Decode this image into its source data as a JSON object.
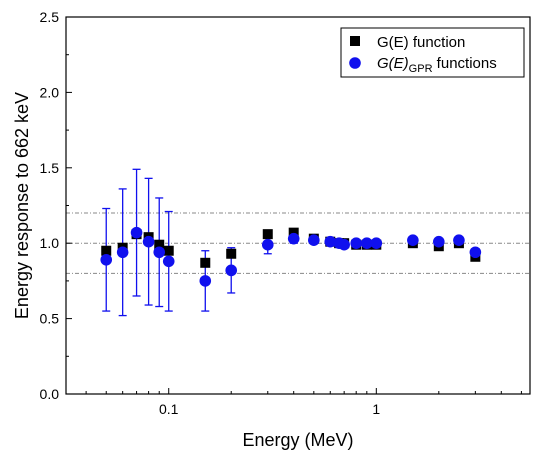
{
  "chart_data": {
    "type": "scatter",
    "xlabel": "Energy (MeV)",
    "ylabel": "Energy response to 662 keV",
    "xscale": "log",
    "xlim": [
      0.032,
      5.5
    ],
    "ylim": [
      0.0,
      2.5
    ],
    "x_ticks": [
      0.1,
      1
    ],
    "x_tick_labels": [
      "0.1",
      "1"
    ],
    "y_ticks": [
      0.0,
      0.5,
      1.0,
      1.5,
      2.0,
      2.5
    ],
    "y_tick_labels": [
      "0.0",
      "0.5",
      "1.0",
      "1.5",
      "2.0",
      "2.5"
    ],
    "reference_lines": [
      0.8,
      1.0,
      1.2
    ],
    "legend_position": "top-right",
    "series": [
      {
        "name": "G(E) function",
        "marker": "square",
        "color": "#000000",
        "points": [
          {
            "x": 0.05,
            "y": 0.95
          },
          {
            "x": 0.06,
            "y": 0.97
          },
          {
            "x": 0.07,
            "y": 1.06
          },
          {
            "x": 0.08,
            "y": 1.04
          },
          {
            "x": 0.09,
            "y": 0.99
          },
          {
            "x": 0.1,
            "y": 0.95
          },
          {
            "x": 0.15,
            "y": 0.87
          },
          {
            "x": 0.2,
            "y": 0.93
          },
          {
            "x": 0.3,
            "y": 1.06
          },
          {
            "x": 0.4,
            "y": 1.07
          },
          {
            "x": 0.5,
            "y": 1.03
          },
          {
            "x": 0.6,
            "y": 1.01
          },
          {
            "x": 0.662,
            "y": 1.0
          },
          {
            "x": 0.7,
            "y": 1.0
          },
          {
            "x": 0.8,
            "y": 0.99
          },
          {
            "x": 0.9,
            "y": 0.99
          },
          {
            "x": 1.0,
            "y": 0.99
          },
          {
            "x": 1.5,
            "y": 1.0
          },
          {
            "x": 2.0,
            "y": 0.98
          },
          {
            "x": 2.5,
            "y": 1.0
          },
          {
            "x": 3.0,
            "y": 0.91
          }
        ]
      },
      {
        "name": "G(E)GPR functions",
        "name_parts": {
          "main": "G(E)",
          "subscript": "GPR",
          "suffix": " functions"
        },
        "marker": "circle",
        "color": "#1010ee",
        "points": [
          {
            "x": 0.05,
            "y": 0.89,
            "err": 0.34
          },
          {
            "x": 0.06,
            "y": 0.94,
            "err": 0.42
          },
          {
            "x": 0.07,
            "y": 1.07,
            "err": 0.42
          },
          {
            "x": 0.08,
            "y": 1.01,
            "err": 0.42
          },
          {
            "x": 0.09,
            "y": 0.94,
            "err": 0.36
          },
          {
            "x": 0.1,
            "y": 0.88,
            "err": 0.33
          },
          {
            "x": 0.15,
            "y": 0.75,
            "err": 0.2
          },
          {
            "x": 0.2,
            "y": 0.82,
            "err": 0.15
          },
          {
            "x": 0.3,
            "y": 0.99,
            "err": 0.06
          },
          {
            "x": 0.4,
            "y": 1.03,
            "err": 0.03
          },
          {
            "x": 0.5,
            "y": 1.02,
            "err": 0.02
          },
          {
            "x": 0.6,
            "y": 1.01,
            "err": 0.01
          },
          {
            "x": 0.662,
            "y": 1.0,
            "err": 0.01
          },
          {
            "x": 0.7,
            "y": 0.99,
            "err": 0.01
          },
          {
            "x": 0.8,
            "y": 1.0,
            "err": 0.01
          },
          {
            "x": 0.9,
            "y": 1.0,
            "err": 0.01
          },
          {
            "x": 1.0,
            "y": 1.0,
            "err": 0.01
          },
          {
            "x": 1.5,
            "y": 1.02,
            "err": 0.01
          },
          {
            "x": 2.0,
            "y": 1.01,
            "err": 0.01
          },
          {
            "x": 2.5,
            "y": 1.02,
            "err": 0.01
          },
          {
            "x": 3.0,
            "y": 0.94,
            "err": 0.02
          }
        ]
      }
    ]
  }
}
